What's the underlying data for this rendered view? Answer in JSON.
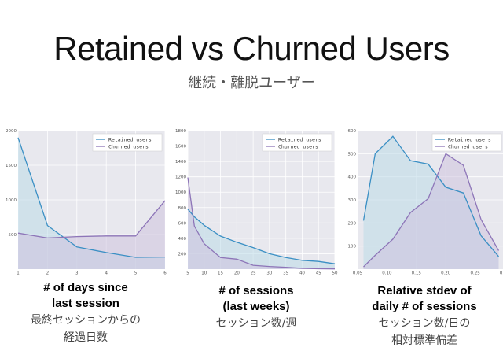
{
  "title": "Retained vs Churned Users",
  "subtitle": "継続・離脱ユーザー",
  "colors": {
    "retained": "#3a8fc4",
    "churned": "#8d75b8",
    "retained_fill": "#bcdbe8",
    "churned_fill": "#cdc2de",
    "grid": "#ffffff",
    "plot_bg": "#e8e8ee"
  },
  "captions": [
    {
      "main": [
        "# of days since",
        "last session"
      ],
      "ja": [
        "最終セッションからの",
        "経過日数"
      ]
    },
    {
      "main": [
        "# of sessions",
        "(last weeks)"
      ],
      "ja": [
        "セッション数/週"
      ]
    },
    {
      "main": [
        "Relative stdev of",
        "daily # of sessions"
      ],
      "ja": [
        "セッション数/日の",
        "相対標準偏差"
      ]
    }
  ],
  "chart_data": [
    {
      "type": "area",
      "x": [
        1,
        2,
        3,
        4,
        5,
        6
      ],
      "xlim": [
        1,
        6
      ],
      "ylim": [
        0,
        2000
      ],
      "xticks": [
        "1",
        "2",
        "3",
        "4",
        "5",
        "6"
      ],
      "yticks": [
        "500",
        "1000",
        "1500",
        "2000"
      ],
      "legend": "top-right",
      "grid": true,
      "series": [
        {
          "name": "Retained users",
          "values": [
            1900,
            630,
            320,
            240,
            170,
            175
          ]
        },
        {
          "name": "Churned users",
          "values": [
            520,
            450,
            470,
            480,
            480,
            990
          ]
        }
      ]
    },
    {
      "type": "area",
      "x": [
        5,
        7,
        10,
        15,
        20,
        25,
        30,
        35,
        40,
        45,
        50
      ],
      "xlim": [
        5,
        50
      ],
      "ylim": [
        0,
        1800
      ],
      "xticks": [
        "5",
        "10",
        "15",
        "20",
        "25",
        "30",
        "35",
        "40",
        "45",
        "50"
      ],
      "yticks": [
        "200",
        "400",
        "600",
        "800",
        "1000",
        "1200",
        "1400",
        "1600",
        "1800"
      ],
      "legend": "top-right",
      "grid": true,
      "series": [
        {
          "name": "Retained users",
          "values": [
            780,
            680,
            570,
            430,
            350,
            280,
            200,
            150,
            115,
            100,
            70
          ]
        },
        {
          "name": "Churned users",
          "values": [
            1190,
            560,
            330,
            150,
            130,
            50,
            35,
            25,
            10,
            5,
            3
          ]
        }
      ]
    },
    {
      "type": "area",
      "x": [
        0.06,
        0.08,
        0.11,
        0.14,
        0.17,
        0.2,
        0.23,
        0.26,
        0.29
      ],
      "xlim": [
        0.05,
        0.3
      ],
      "ylim": [
        0,
        600
      ],
      "xticks": [
        "0.05",
        "0.10",
        "0.15",
        "0.20",
        "0.25",
        "0.30"
      ],
      "yticks": [
        "100",
        "200",
        "300",
        "400",
        "500",
        "600"
      ],
      "legend": "top-right",
      "grid": true,
      "series": [
        {
          "name": "Retained users",
          "values": [
            210,
            500,
            575,
            470,
            455,
            355,
            330,
            145,
            55
          ]
        },
        {
          "name": "Churned users",
          "values": [
            10,
            60,
            130,
            245,
            305,
            500,
            450,
            215,
            80
          ]
        }
      ]
    }
  ]
}
